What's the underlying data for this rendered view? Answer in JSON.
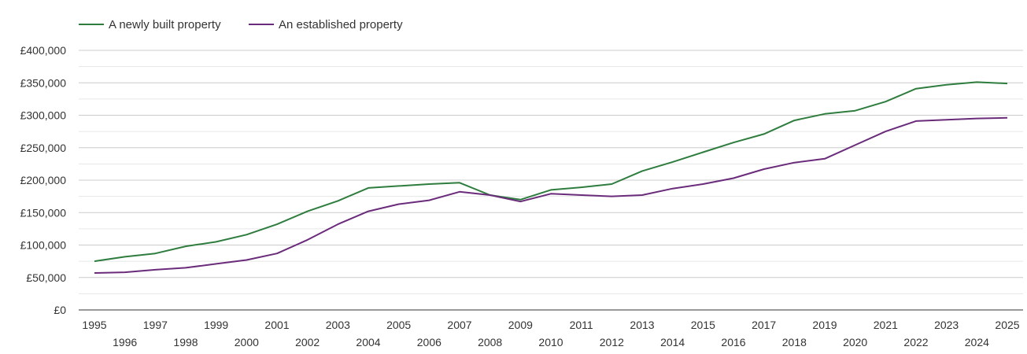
{
  "chart_data": {
    "type": "line",
    "title": "",
    "xlabel": "",
    "ylabel": "",
    "ylim": [
      0,
      400000
    ],
    "y_ticks": [
      0,
      50000,
      100000,
      150000,
      200000,
      250000,
      300000,
      350000,
      400000
    ],
    "y_tick_labels": [
      "£0",
      "£50,000",
      "£100,000",
      "£150,000",
      "£200,000",
      "£250,000",
      "£300,000",
      "£350,000",
      "£400,000"
    ],
    "grid": true,
    "legend_position": "top-left",
    "x": [
      "1995",
      "1996",
      "1997",
      "1998",
      "1999",
      "2000",
      "2001",
      "2002",
      "2003",
      "2004",
      "2005",
      "2006",
      "2007",
      "2008",
      "2009",
      "2010",
      "2011",
      "2012",
      "2013",
      "2014",
      "2015",
      "2016",
      "2017",
      "2018",
      "2019",
      "2020",
      "2021",
      "2022",
      "2023",
      "2024",
      "2025"
    ],
    "series": [
      {
        "name": "A newly built property",
        "color": "#2e7d3e",
        "values": [
          75000,
          82000,
          87000,
          98000,
          105000,
          116000,
          132000,
          152000,
          168000,
          188000,
          191000,
          194000,
          196000,
          177000,
          170000,
          185000,
          189000,
          194000,
          214000,
          228000,
          243000,
          258000,
          271000,
          292000,
          302000,
          307000,
          321000,
          341000,
          347000,
          351000,
          349000
        ]
      },
      {
        "name": "An established property",
        "color": "#6a2c7a",
        "values": [
          57000,
          58000,
          62000,
          65000,
          71000,
          77000,
          87000,
          108000,
          132000,
          152000,
          163000,
          169000,
          182000,
          177000,
          167000,
          179000,
          177000,
          175000,
          177000,
          187000,
          194000,
          203000,
          217000,
          227000,
          233000,
          254000,
          275000,
          291000,
          293000,
          295000,
          296000
        ]
      }
    ]
  }
}
